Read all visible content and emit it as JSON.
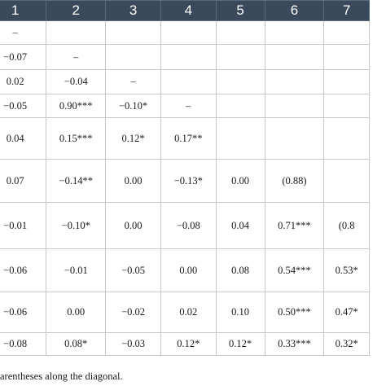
{
  "table": {
    "headers": [
      "1",
      "2",
      "3",
      "4",
      "5",
      "6",
      "7"
    ],
    "rows": [
      [
        "–",
        "",
        "",
        "",
        "",
        "",
        ""
      ],
      [
        "−0.07",
        "–",
        "",
        "",
        "",
        "",
        ""
      ],
      [
        "0.02",
        "−0.04",
        "–",
        "",
        "",
        "",
        ""
      ],
      [
        "−0.05",
        "0.90***",
        "−0.10*",
        "–",
        "",
        "",
        ""
      ],
      [
        "0.04",
        "0.15***",
        "0.12*",
        "0.17**",
        "",
        "",
        ""
      ],
      [
        "0.07",
        "−0.14**",
        "0.00",
        "−0.13*",
        "0.00",
        "(0.88)",
        ""
      ],
      [
        "−0.01",
        "−0.10*",
        "0.00",
        "−0.08",
        "0.04",
        "0.71***",
        "(0.8"
      ],
      [
        "−0.06",
        "−0.01",
        "−0.05",
        "0.00",
        "0.08",
        "0.54***",
        "0.53*"
      ],
      [
        "−0.06",
        "0.00",
        "−0.02",
        "0.02",
        "0.10",
        "0.50***",
        "0.47*"
      ],
      [
        "−0.08",
        "0.08*",
        "−0.03",
        "0.12*",
        "0.12*",
        "0.33***",
        "0.32*"
      ]
    ]
  },
  "footnote": "arentheses along the diagonal."
}
